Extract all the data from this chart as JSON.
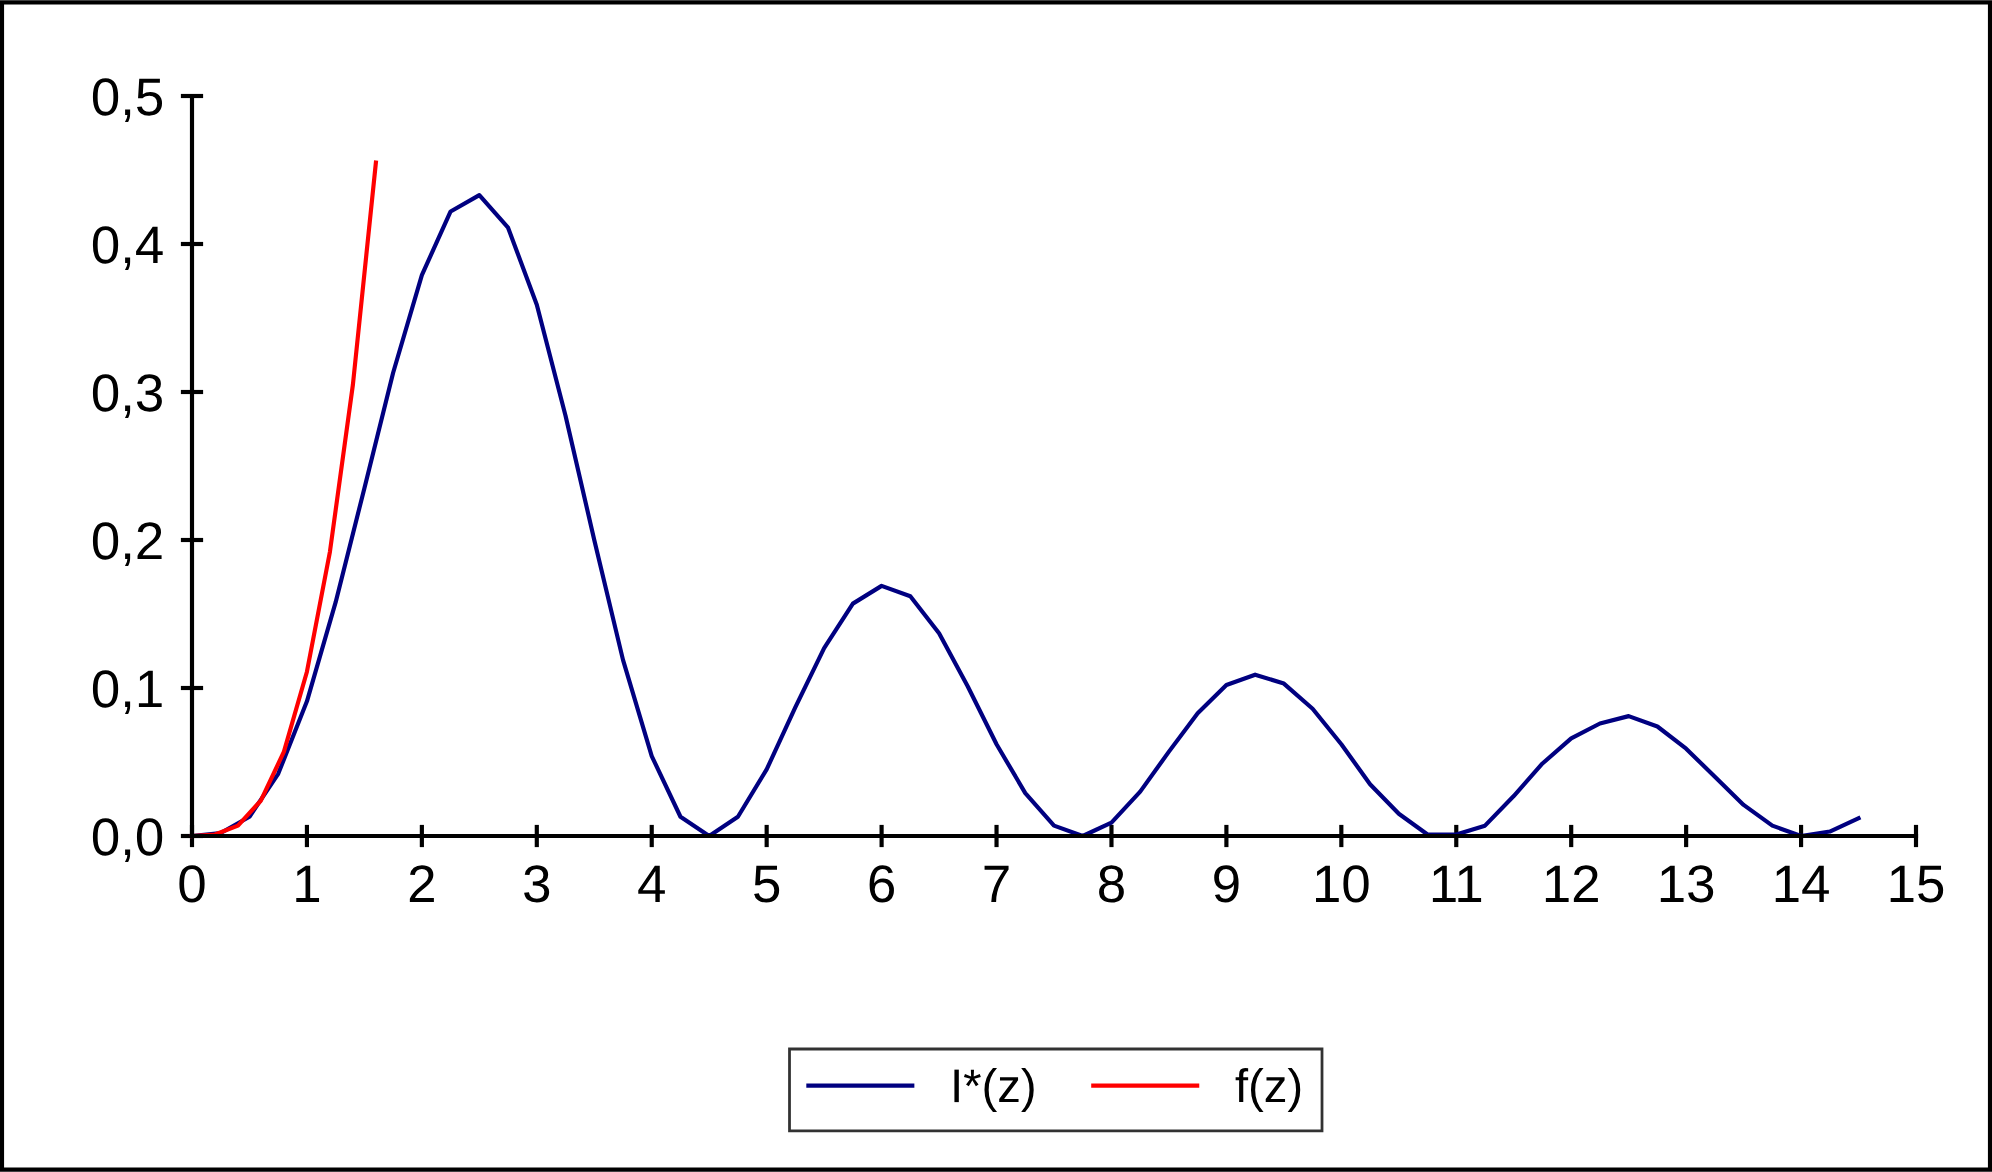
{
  "chart_data": {
    "type": "line",
    "x": [
      0,
      0.25,
      0.5,
      0.75,
      1,
      1.25,
      1.5,
      1.75,
      2,
      2.25,
      2.5,
      2.75,
      3,
      3.25,
      3.5,
      3.75,
      4,
      4.25,
      4.5,
      4.75,
      5,
      5.25,
      5.5,
      5.75,
      6,
      6.25,
      6.5,
      6.75,
      7,
      7.25,
      7.5,
      7.75,
      8,
      8.25,
      8.5,
      8.75,
      9,
      9.25,
      9.5,
      9.75,
      10,
      10.25,
      10.5,
      10.75,
      11,
      11.25,
      11.5,
      11.75,
      12,
      12.25,
      12.5,
      12.75,
      13,
      13.25,
      13.5,
      13.75,
      14,
      14.25,
      14.5
    ],
    "series": [
      {
        "name": "I*(z)",
        "color": "#000080",
        "values": [
          0,
          0.002,
          0.013,
          0.042,
          0.091,
          0.158,
          0.235,
          0.313,
          0.379,
          0.422,
          0.433,
          0.411,
          0.359,
          0.284,
          0.2,
          0.119,
          0.054,
          0.013,
          0,
          0.013,
          0.045,
          0.087,
          0.127,
          0.157,
          0.169,
          0.162,
          0.137,
          0.101,
          0.062,
          0.029,
          0.007,
          0,
          0.009,
          0.03,
          0.057,
          0.083,
          0.102,
          0.109,
          0.103,
          0.086,
          0.062,
          0.035,
          0.015,
          0.001,
          0.001,
          0.007,
          0.027,
          0.049,
          0.066,
          0.076,
          0.081,
          0.074,
          0.059,
          0.04,
          0.021,
          0.007,
          0,
          0.003,
          0.012
        ]
      },
      {
        "name": "f(z)",
        "color": "#ff0000",
        "x": [
          0,
          0.2,
          0.4,
          0.6,
          0.8,
          1,
          1.2,
          1.4,
          1.6
        ],
        "values": [
          0,
          0.001,
          0.007,
          0.024,
          0.057,
          0.111,
          0.192,
          0.305,
          0.455
        ]
      }
    ],
    "xlim": [
      0,
      15
    ],
    "xticks": [
      0,
      1,
      2,
      3,
      4,
      5,
      6,
      7,
      8,
      9,
      10,
      11,
      12,
      13,
      14,
      15
    ],
    "ylim": [
      0,
      0.5
    ],
    "yticks": [
      {
        "value": 0,
        "label": "0,0"
      },
      {
        "value": 0.1,
        "label": "0,1"
      },
      {
        "value": 0.2,
        "label": "0,2"
      },
      {
        "value": 0.3,
        "label": "0,3"
      },
      {
        "value": 0.4,
        "label": "0,4"
      },
      {
        "value": 0.5,
        "label": "0,5"
      }
    ],
    "grid": false,
    "legend": "bottom",
    "marker": "none",
    "line_style": "solid"
  }
}
